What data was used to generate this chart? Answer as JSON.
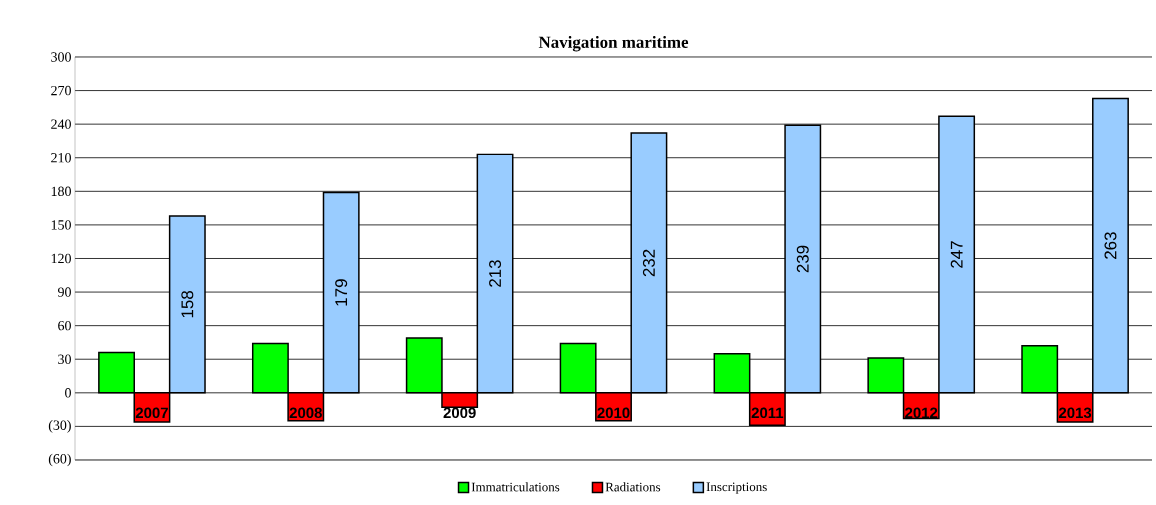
{
  "chart_data": {
    "type": "bar",
    "title": "Navigation maritime",
    "categories": [
      "2007",
      "2008",
      "2009",
      "2010",
      "2011",
      "2012",
      "2013"
    ],
    "series": [
      {
        "name": "Immatriculations",
        "color": "#00ff00",
        "values": [
          36,
          44,
          49,
          44,
          35,
          31,
          42
        ]
      },
      {
        "name": "Radiations",
        "color": "#ff0000",
        "values": [
          -26,
          -25,
          -13,
          -25,
          -29,
          -23,
          -26
        ]
      },
      {
        "name": "Inscriptions",
        "color": "#99ccff",
        "values": [
          158,
          179,
          213,
          232,
          239,
          247,
          263
        ],
        "value_labels": [
          "158",
          "179",
          "213",
          "232",
          "239",
          "247",
          "263"
        ]
      }
    ],
    "ylim": [
      -60,
      300
    ],
    "yticks": [
      {
        "value": -60,
        "label": "(60)"
      },
      {
        "value": -30,
        "label": "(30)"
      },
      0,
      30,
      60,
      90,
      120,
      150,
      180,
      210,
      240,
      270,
      300
    ],
    "grid": "y",
    "legend": "bottom"
  }
}
